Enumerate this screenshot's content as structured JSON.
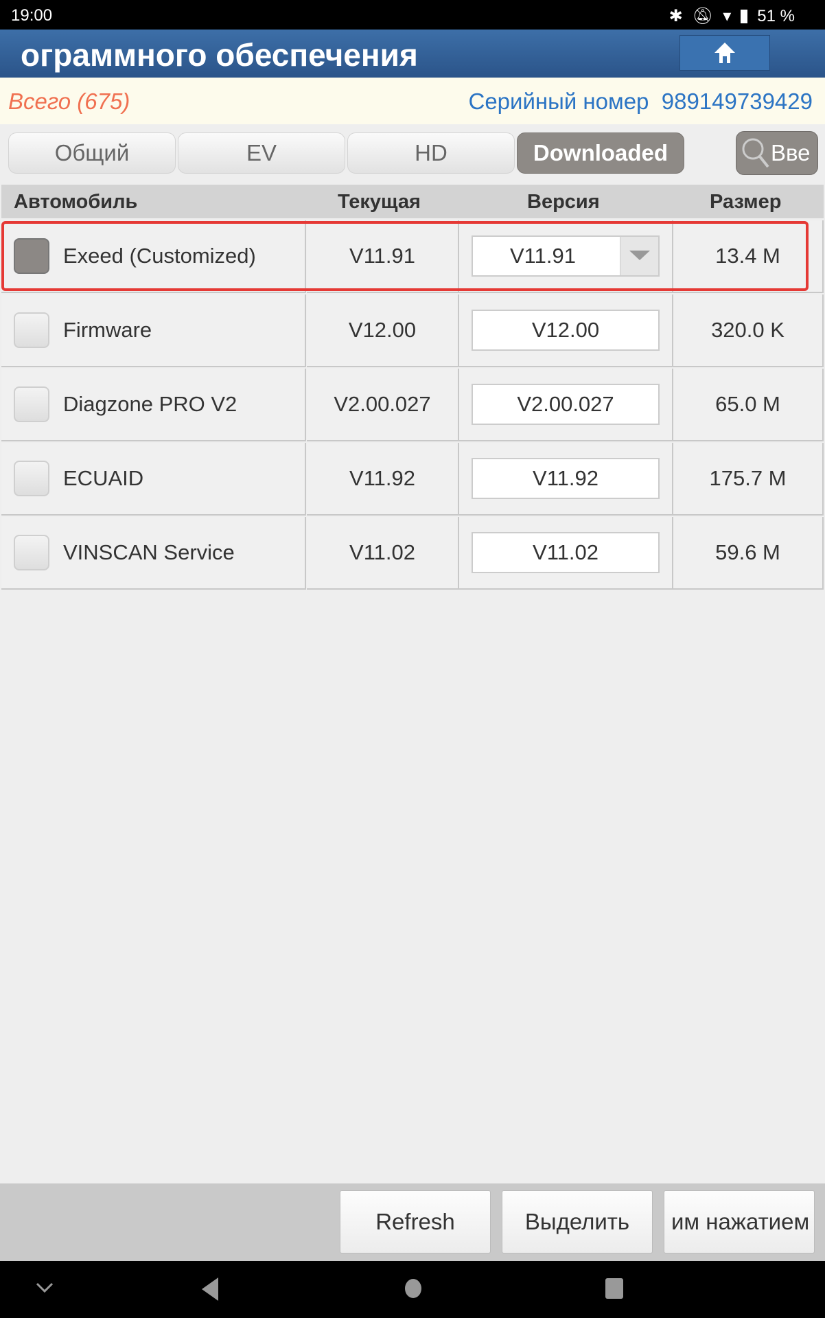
{
  "status": {
    "time": "19:00",
    "battery": "51 %"
  },
  "header": {
    "title": "ограммного обеспечения"
  },
  "info": {
    "total": "Всего (675)",
    "serial_label": "Серийный номер",
    "serial": "989149739429"
  },
  "tabs": [
    {
      "label": "Общий"
    },
    {
      "label": "EV"
    },
    {
      "label": "HD"
    },
    {
      "label": "Downloaded",
      "active": true
    }
  ],
  "search": {
    "label": "Вве"
  },
  "table": {
    "headers": [
      "Автомобиль",
      "Текущая",
      "Версия",
      "Размер"
    ],
    "rows": [
      {
        "name": "Exeed (Customized)",
        "current": "V11.91",
        "version": "V11.91",
        "size": "13.4 M",
        "checked": true,
        "dropdown": true
      },
      {
        "name": "Firmware",
        "current": "V12.00",
        "version": "V12.00",
        "size": "320.0 K"
      },
      {
        "name": "Diagzone PRO V2",
        "current": "V2.00.027",
        "version": "V2.00.027",
        "size": "65.0 M"
      },
      {
        "name": "ECUAID",
        "current": "V11.92",
        "version": "V11.92",
        "size": "175.7 M"
      },
      {
        "name": "VINSCAN Service",
        "current": "V11.02",
        "version": "V11.02",
        "size": "59.6 M"
      }
    ]
  },
  "toolbar": {
    "refresh": "Refresh",
    "select": "Выделить",
    "third": "им нажатием"
  },
  "colors": {
    "header": "#2f5c94",
    "total": "#f07050",
    "serial": "#2b74c4",
    "highlight": "#e53935"
  }
}
